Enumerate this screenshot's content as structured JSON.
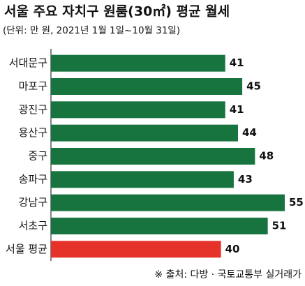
{
  "chart_data": {
    "type": "bar",
    "orientation": "horizontal",
    "title": "서울 주요 자치구 원룸(30㎡) 평균 월세",
    "subtitle": "(단위: 만 원, 2021년 1월 1일~10월 31일)",
    "source": "※ 출처: 다방 · 국토교통부 실거래가",
    "categories": [
      "서대문구",
      "마포구",
      "광진구",
      "용산구",
      "중구",
      "송파구",
      "강남구",
      "서초구",
      "서울 평균"
    ],
    "values": [
      41,
      45,
      41,
      44,
      48,
      43,
      55,
      51,
      40
    ],
    "colors": [
      "#18743f",
      "#18743f",
      "#18743f",
      "#18743f",
      "#18743f",
      "#18743f",
      "#18743f",
      "#18743f",
      "#e5332a"
    ]
  }
}
